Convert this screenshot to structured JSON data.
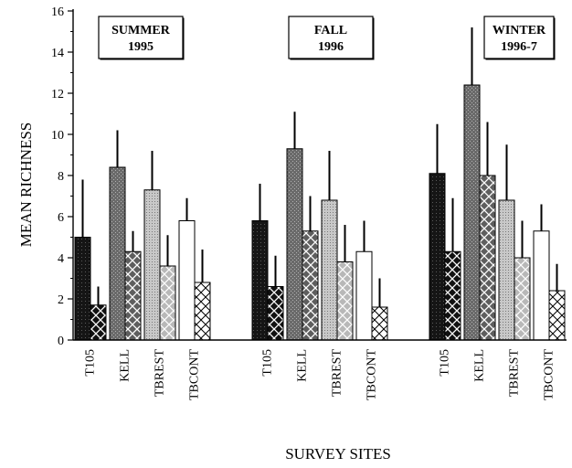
{
  "chart_data": {
    "type": "bar",
    "title": "",
    "xlabel": "SURVEY SITES",
    "ylabel": "MEAN RICHNESS",
    "ylim": [
      0,
      16
    ],
    "yticks": [
      "0",
      "2",
      "4",
      "6",
      "8",
      "10",
      "12",
      "14",
      "16"
    ],
    "grid": false,
    "groups": [
      {
        "season_line1": "SUMMER",
        "season_line2": "1995",
        "sites": [
          {
            "name": "T105",
            "values": [
              5.0,
              1.7
            ],
            "errors": [
              7.8,
              2.6
            ]
          },
          {
            "name": "KELL",
            "values": [
              8.4,
              4.3
            ],
            "errors": [
              10.2,
              5.3
            ]
          },
          {
            "name": "TBREST",
            "values": [
              7.3,
              3.6
            ],
            "errors": [
              9.2,
              5.1
            ]
          },
          {
            "name": "TBCONT",
            "values": [
              5.8,
              2.8
            ],
            "errors": [
              6.9,
              4.4
            ]
          }
        ]
      },
      {
        "season_line1": "FALL",
        "season_line2": "1996",
        "sites": [
          {
            "name": "T105",
            "values": [
              5.8,
              2.6
            ],
            "errors": [
              7.6,
              4.1
            ]
          },
          {
            "name": "KELL",
            "values": [
              9.3,
              5.3
            ],
            "errors": [
              11.1,
              7.0
            ]
          },
          {
            "name": "TBREST",
            "values": [
              6.8,
              3.8
            ],
            "errors": [
              9.2,
              5.6
            ]
          },
          {
            "name": "TBCONT",
            "values": [
              4.3,
              1.6
            ],
            "errors": [
              5.8,
              3.0
            ]
          }
        ]
      },
      {
        "season_line1": "WINTER",
        "season_line2": "1996-7",
        "sites": [
          {
            "name": "T105",
            "values": [
              8.1,
              4.3
            ],
            "errors": [
              10.5,
              6.9
            ]
          },
          {
            "name": "KELL",
            "values": [
              12.4,
              8.0
            ],
            "errors": [
              15.2,
              10.6
            ]
          },
          {
            "name": "TBREST",
            "values": [
              6.8,
              4.0
            ],
            "errors": [
              9.5,
              5.8
            ]
          },
          {
            "name": "TBCONT",
            "values": [
              5.3,
              2.4
            ],
            "errors": [
              6.6,
              3.7
            ]
          }
        ]
      }
    ],
    "colors": {
      "T105": [
        "#1e1e1e",
        "#1e1e1e"
      ],
      "KELL": [
        "#6c6c6c",
        "#6c6c6c"
      ],
      "TBREST": [
        "#b5b5b5",
        "#b5b5b5"
      ],
      "TBCONT": [
        "#ffffff",
        "#ffffff"
      ]
    }
  }
}
